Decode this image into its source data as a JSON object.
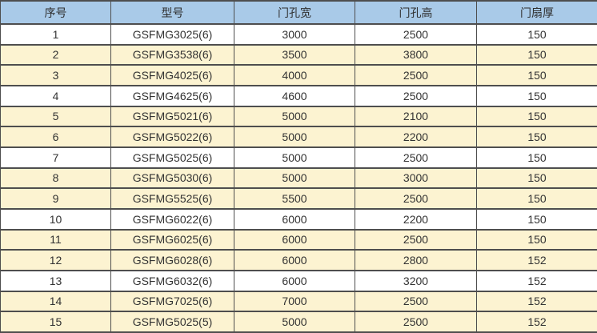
{
  "table": {
    "columns": [
      "序号",
      "型号",
      "门孔宽",
      "门孔高",
      "门扇厚"
    ],
    "rows": [
      [
        "1",
        "GSFMG3025(6)",
        "3000",
        "2500",
        "150"
      ],
      [
        "2",
        "GSFMG3538(6)",
        "3500",
        "3800",
        "150"
      ],
      [
        "3",
        "GSFMG4025(6)",
        "4000",
        "2500",
        "150"
      ],
      [
        "4",
        "GSFMG4625(6)",
        "4600",
        "2500",
        "150"
      ],
      [
        "5",
        "GSFMG5021(6)",
        "5000",
        "2100",
        "150"
      ],
      [
        "6",
        "GSFMG5022(6)",
        "5000",
        "2200",
        "150"
      ],
      [
        "7",
        "GSFMG5025(6)",
        "5000",
        "2500",
        "150"
      ],
      [
        "8",
        "GSFMG5030(6)",
        "5000",
        "3000",
        "150"
      ],
      [
        "9",
        "GSFMG5525(6)",
        "5500",
        "2500",
        "150"
      ],
      [
        "10",
        "GSFMG6022(6)",
        "6000",
        "2200",
        "150"
      ],
      [
        "11",
        "GSFMG6025(6)",
        "6000",
        "2500",
        "150"
      ],
      [
        "12",
        "GSFMG6028(6)",
        "6000",
        "2800",
        "152"
      ],
      [
        "13",
        "GSFMG6032(6)",
        "6000",
        "3200",
        "152"
      ],
      [
        "14",
        "GSFMG7025(6)",
        "7000",
        "2500",
        "152"
      ],
      [
        "15",
        "GSFMG5025(5)",
        "5000",
        "2500",
        "152"
      ]
    ]
  },
  "colors": {
    "header_bg": "#a9cae8",
    "stripe_bg": "#fcf3d1",
    "row_bg": "#ffffff",
    "border": "#4e4e4e",
    "text": "#333333"
  }
}
